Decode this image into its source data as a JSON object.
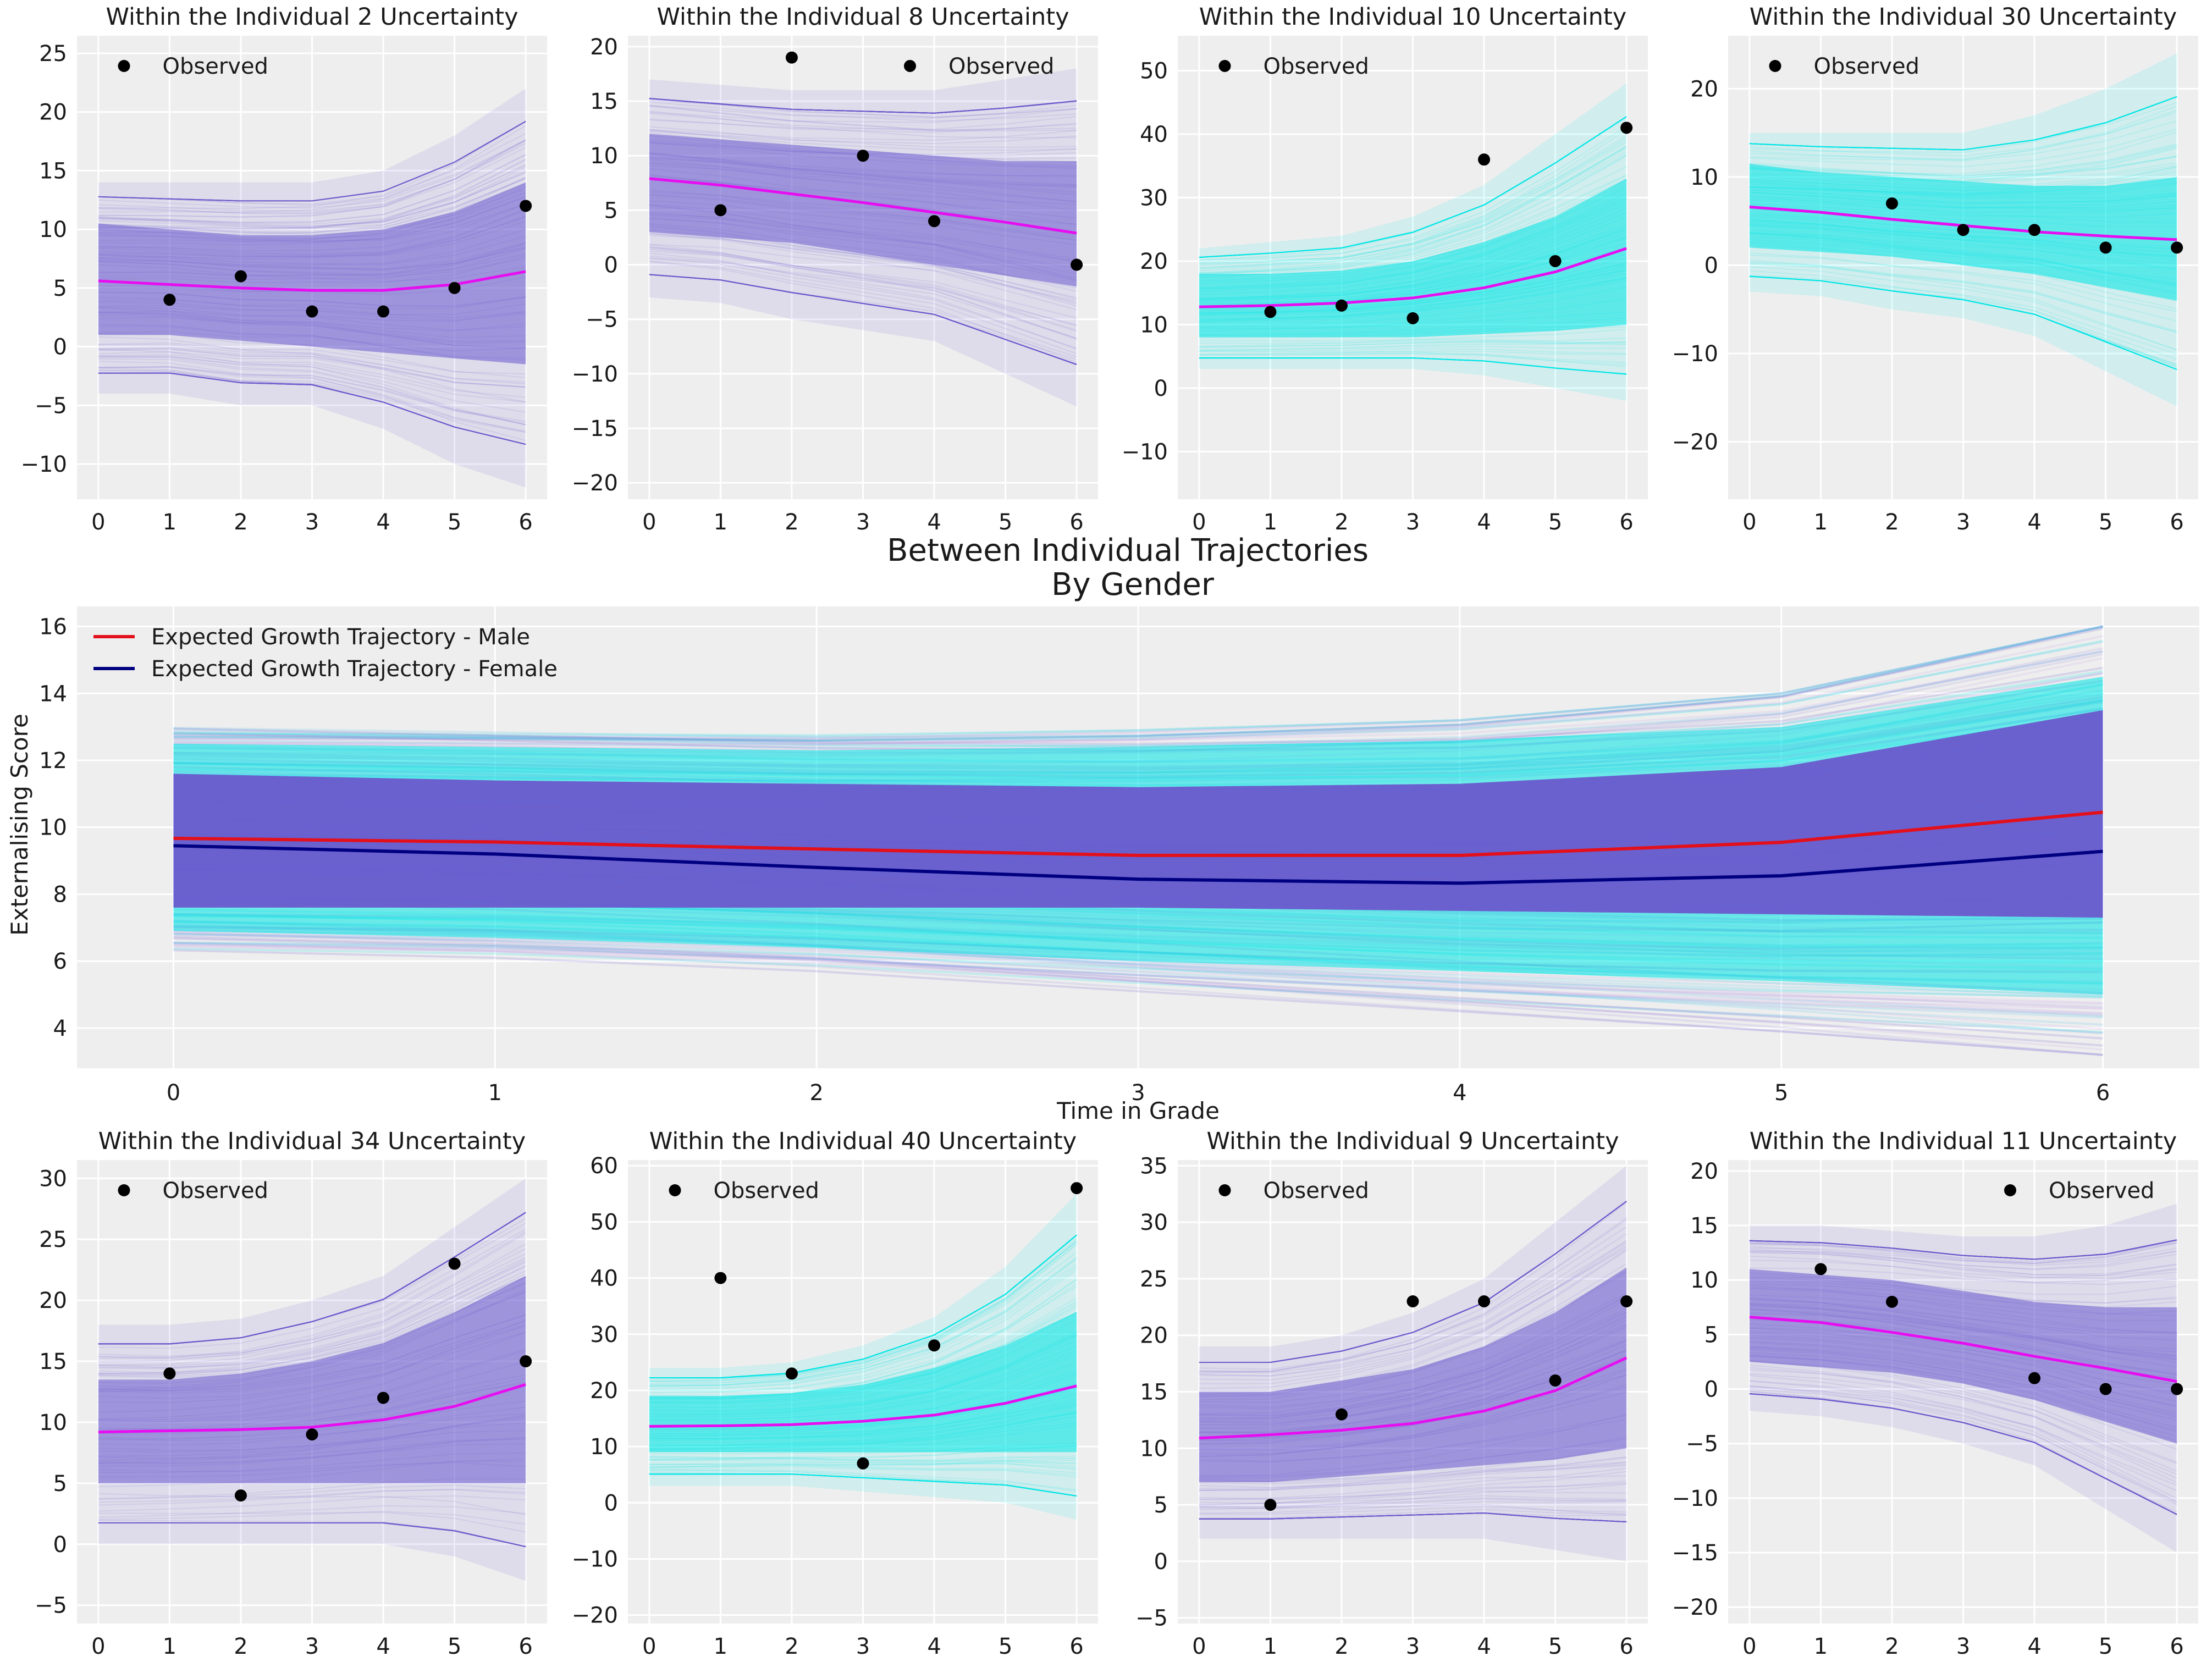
{
  "colors": {
    "panel_bg": "#eeeeee",
    "grid": "#ffffff",
    "purple_band": "#6a5acd",
    "cyan_band": "#00e5e5",
    "mean_line": "#e60ef0",
    "observed": "#000000",
    "male": "#e3101c",
    "female": "#000080"
  },
  "main": {
    "title": "Between Individual Trajectories\nBy Gender",
    "xlabel": "Time in Grade",
    "ylabel": "Externalising Score"
  },
  "chart_data": [
    {
      "type": "line",
      "title": "Within the Individual 2 Uncertainty",
      "band_color": "purple",
      "x": [
        0,
        1,
        2,
        3,
        4,
        5,
        6
      ],
      "mean": [
        5.6,
        5.3,
        5.0,
        4.8,
        4.8,
        5.3,
        6.4
      ],
      "observed": [
        [
          1,
          4
        ],
        [
          2,
          6
        ],
        [
          3,
          3
        ],
        [
          4,
          3
        ],
        [
          5,
          5
        ],
        [
          6,
          12
        ]
      ],
      "band_inner": [
        [
          1,
          10.5
        ],
        [
          1,
          10
        ],
        [
          0.5,
          9.5
        ],
        [
          0,
          9.5
        ],
        [
          -0.5,
          10
        ],
        [
          -1,
          11.5
        ],
        [
          -1.5,
          14
        ]
      ],
      "band_outer": [
        [
          -4,
          14
        ],
        [
          -4,
          14
        ],
        [
          -5,
          14
        ],
        [
          -5,
          14
        ],
        [
          -7,
          15
        ],
        [
          -10,
          18
        ],
        [
          -12,
          22
        ]
      ],
      "ylim": [
        -13,
        26.5
      ],
      "yticks": [
        -10,
        -5,
        0,
        5,
        10,
        15,
        20,
        25
      ],
      "legend": "top-left",
      "legend_label": "Observed"
    },
    {
      "type": "line",
      "title": "Within the Individual 8 Uncertainty",
      "band_color": "purple",
      "x": [
        0,
        1,
        2,
        3,
        4,
        5,
        6
      ],
      "mean": [
        7.9,
        7.3,
        6.5,
        5.7,
        4.8,
        3.9,
        2.9
      ],
      "observed": [
        [
          1,
          5
        ],
        [
          2,
          19
        ],
        [
          3,
          10
        ],
        [
          4,
          4
        ],
        [
          6,
          0
        ]
      ],
      "band_inner": [
        [
          3,
          12
        ],
        [
          2.5,
          11.5
        ],
        [
          2,
          11
        ],
        [
          1,
          10.5
        ],
        [
          0,
          10
        ],
        [
          -1,
          9.5
        ],
        [
          -2,
          9.5
        ]
      ],
      "band_outer": [
        [
          -3,
          17
        ],
        [
          -3.5,
          16.5
        ],
        [
          -5,
          16
        ],
        [
          -6,
          16
        ],
        [
          -7,
          16
        ],
        [
          -10,
          17
        ],
        [
          -13,
          18
        ]
      ],
      "ylim": [
        -21.5,
        21
      ],
      "yticks": [
        -20,
        -15,
        -10,
        -5,
        0,
        5,
        10,
        15,
        20
      ],
      "legend": "top-right",
      "legend_label": "Observed"
    },
    {
      "type": "line",
      "title": "Within the Individual 10 Uncertainty",
      "band_color": "cyan",
      "x": [
        0,
        1,
        2,
        3,
        4,
        5,
        6
      ],
      "mean": [
        12.8,
        13.0,
        13.4,
        14.2,
        15.8,
        18.3,
        22.0
      ],
      "observed": [
        [
          1,
          12
        ],
        [
          2,
          13
        ],
        [
          3,
          11
        ],
        [
          4,
          36
        ],
        [
          5,
          20
        ],
        [
          6,
          41
        ]
      ],
      "band_inner": [
        [
          8,
          18
        ],
        [
          8,
          18
        ],
        [
          8,
          18.5
        ],
        [
          8,
          20
        ],
        [
          8.5,
          23
        ],
        [
          9,
          27
        ],
        [
          10,
          33
        ]
      ],
      "band_outer": [
        [
          3,
          22
        ],
        [
          3,
          23
        ],
        [
          3,
          24
        ],
        [
          3,
          27
        ],
        [
          2,
          32
        ],
        [
          0,
          40
        ],
        [
          -2,
          48
        ]
      ],
      "ylim": [
        -17.5,
        55.5
      ],
      "yticks": [
        -10,
        0,
        10,
        20,
        30,
        40,
        50
      ],
      "legend": "top-left",
      "legend_label": "Observed"
    },
    {
      "type": "line",
      "title": "Within the Individual 30 Uncertainty",
      "band_color": "cyan",
      "x": [
        0,
        1,
        2,
        3,
        4,
        5,
        6
      ],
      "mean": [
        6.6,
        6.0,
        5.2,
        4.5,
        3.8,
        3.3,
        2.9
      ],
      "observed": [
        [
          2,
          7
        ],
        [
          3,
          4
        ],
        [
          4,
          4
        ],
        [
          5,
          2
        ],
        [
          6,
          2
        ]
      ],
      "band_inner": [
        [
          2,
          11.5
        ],
        [
          1.5,
          10.5
        ],
        [
          1,
          10
        ],
        [
          0,
          9.5
        ],
        [
          -1,
          9
        ],
        [
          -2.5,
          9
        ],
        [
          -4,
          10
        ]
      ],
      "band_outer": [
        [
          -3,
          15
        ],
        [
          -3.5,
          15
        ],
        [
          -5,
          15
        ],
        [
          -6,
          15
        ],
        [
          -8,
          17
        ],
        [
          -12,
          20
        ],
        [
          -16,
          24
        ]
      ],
      "ylim": [
        -26.5,
        26
      ],
      "yticks": [
        -20,
        -10,
        0,
        10,
        20
      ],
      "legend": "top-left",
      "legend_label": "Observed"
    },
    {
      "type": "line",
      "title": "Within the Individual 34 Uncertainty",
      "band_color": "purple",
      "x": [
        0,
        1,
        2,
        3,
        4,
        5,
        6
      ],
      "mean": [
        9.2,
        9.3,
        9.4,
        9.6,
        10.2,
        11.3,
        13.1
      ],
      "observed": [
        [
          1,
          14
        ],
        [
          2,
          4
        ],
        [
          3,
          9
        ],
        [
          4,
          12
        ],
        [
          5,
          23
        ],
        [
          6,
          15
        ]
      ],
      "band_inner": [
        [
          5,
          13.5
        ],
        [
          5,
          13.5
        ],
        [
          5,
          14
        ],
        [
          5,
          15
        ],
        [
          5,
          16.5
        ],
        [
          5,
          19
        ],
        [
          5,
          22
        ]
      ],
      "band_outer": [
        [
          0,
          18
        ],
        [
          0,
          18
        ],
        [
          0,
          18.5
        ],
        [
          0,
          20
        ],
        [
          0,
          22
        ],
        [
          -1,
          26
        ],
        [
          -3,
          30
        ]
      ],
      "ylim": [
        -6.5,
        31.5
      ],
      "yticks": [
        -5,
        0,
        5,
        10,
        15,
        20,
        25,
        30
      ],
      "legend": "top-left",
      "legend_label": "Observed"
    },
    {
      "type": "line",
      "title": "Within the Individual 40 Uncertainty",
      "band_color": "cyan",
      "x": [
        0,
        1,
        2,
        3,
        4,
        5,
        6
      ],
      "mean": [
        13.6,
        13.7,
        13.9,
        14.5,
        15.6,
        17.7,
        20.8
      ],
      "observed": [
        [
          1,
          40
        ],
        [
          2,
          23
        ],
        [
          3,
          7
        ],
        [
          4,
          28
        ],
        [
          6,
          56
        ]
      ],
      "band_inner": [
        [
          9,
          19
        ],
        [
          9,
          19
        ],
        [
          9,
          19.5
        ],
        [
          9,
          21
        ],
        [
          9,
          24
        ],
        [
          9,
          28
        ],
        [
          9,
          34
        ]
      ],
      "band_outer": [
        [
          3,
          24
        ],
        [
          3,
          24
        ],
        [
          3,
          25
        ],
        [
          2,
          28
        ],
        [
          1,
          33
        ],
        [
          0,
          42
        ],
        [
          -3,
          55
        ]
      ],
      "ylim": [
        -21.5,
        61
      ],
      "yticks": [
        -20,
        -10,
        0,
        10,
        20,
        30,
        40,
        50,
        60
      ],
      "legend": "top-left",
      "legend_label": "Observed"
    },
    {
      "type": "line",
      "title": "Within the Individual 9 Uncertainty",
      "band_color": "purple",
      "x": [
        0,
        1,
        2,
        3,
        4,
        5,
        6
      ],
      "mean": [
        10.9,
        11.2,
        11.6,
        12.2,
        13.3,
        15.1,
        18.0
      ],
      "observed": [
        [
          1,
          5
        ],
        [
          2,
          13
        ],
        [
          3,
          23
        ],
        [
          4,
          23
        ],
        [
          5,
          16
        ],
        [
          6,
          23
        ]
      ],
      "band_inner": [
        [
          7,
          15
        ],
        [
          7,
          15
        ],
        [
          7.5,
          16
        ],
        [
          8,
          17
        ],
        [
          8.5,
          19
        ],
        [
          9,
          22
        ],
        [
          10,
          26
        ]
      ],
      "band_outer": [
        [
          2,
          19
        ],
        [
          2,
          19
        ],
        [
          2,
          20
        ],
        [
          2,
          22
        ],
        [
          2,
          25
        ],
        [
          1,
          30
        ],
        [
          0,
          35
        ]
      ],
      "ylim": [
        -5.5,
        35.5
      ],
      "yticks": [
        -5,
        0,
        5,
        10,
        15,
        20,
        25,
        30,
        35
      ],
      "legend": "top-left",
      "legend_label": "Observed"
    },
    {
      "type": "line",
      "title": "Within the Individual 11 Uncertainty",
      "band_color": "purple",
      "x": [
        0,
        1,
        2,
        3,
        4,
        5,
        6
      ],
      "mean": [
        6.6,
        6.1,
        5.2,
        4.2,
        3.0,
        1.9,
        0.7
      ],
      "observed": [
        [
          1,
          11
        ],
        [
          2,
          8
        ],
        [
          4,
          1
        ],
        [
          5,
          0
        ],
        [
          6,
          0
        ]
      ],
      "band_inner": [
        [
          2.5,
          11
        ],
        [
          2,
          10.5
        ],
        [
          1.5,
          10
        ],
        [
          0.5,
          9
        ],
        [
          -1,
          8
        ],
        [
          -3,
          7.5
        ],
        [
          -5,
          7.5
        ]
      ],
      "band_outer": [
        [
          -2,
          15
        ],
        [
          -2.5,
          15
        ],
        [
          -3.5,
          14.5
        ],
        [
          -5,
          14
        ],
        [
          -7,
          14
        ],
        [
          -11,
          15
        ],
        [
          -15,
          17
        ]
      ],
      "ylim": [
        -21.5,
        21
      ],
      "yticks": [
        -20,
        -15,
        -10,
        -5,
        0,
        5,
        10,
        15,
        20
      ],
      "legend": "top-right",
      "legend_label": "Observed"
    },
    {
      "type": "line",
      "title": "Between Individual Trajectories\nBy Gender",
      "x": [
        0,
        1,
        2,
        3,
        4,
        5,
        6
      ],
      "series": [
        {
          "name": "Expected Growth Trajectory - Male",
          "color": "#e3101c",
          "values": [
            9.67,
            9.56,
            9.35,
            9.16,
            9.16,
            9.55,
            10.45
          ]
        },
        {
          "name": "Expected Growth Trajectory - Female",
          "color": "#000080",
          "values": [
            9.45,
            9.2,
            8.8,
            8.45,
            8.33,
            8.55,
            9.28
          ]
        }
      ],
      "purple_band": [
        [
          7.6,
          11.6
        ],
        [
          7.6,
          11.4
        ],
        [
          7.6,
          11.3
        ],
        [
          7.6,
          11.2
        ],
        [
          7.5,
          11.3
        ],
        [
          7.4,
          11.8
        ],
        [
          7.3,
          13.5
        ]
      ],
      "cyan_band": [
        [
          6.9,
          12.5
        ],
        [
          6.7,
          12.4
        ],
        [
          6.4,
          12.3
        ],
        [
          6,
          12.4
        ],
        [
          5.7,
          12.6
        ],
        [
          5.4,
          13
        ],
        [
          5,
          14.5
        ]
      ],
      "outer_band": [
        [
          6.3,
          13
        ],
        [
          6.1,
          12.9
        ],
        [
          5.7,
          12.8
        ],
        [
          5.1,
          12.9
        ],
        [
          4.5,
          13.2
        ],
        [
          3.9,
          14
        ],
        [
          3.2,
          16
        ]
      ],
      "xlabel": "Time in Grade",
      "ylabel": "Externalising Score",
      "ylim": [
        2.8,
        16.6
      ],
      "yticks": [
        4,
        6,
        8,
        10,
        12,
        14,
        16
      ],
      "xlim": [
        -0.3,
        6.3
      ],
      "xticks": [
        0,
        1,
        2,
        3,
        4,
        5,
        6
      ],
      "legend": "top-left"
    }
  ]
}
